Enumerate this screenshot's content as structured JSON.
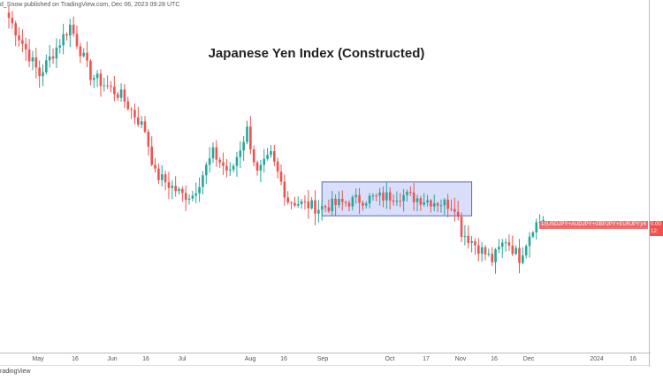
{
  "header": {
    "published": "d_Snow published on TradingView.com, Dec 06, 2023 09:28 UTC"
  },
  "chart_data": {
    "type": "candlestick",
    "title": "Japanese Yen Index (Constructed)",
    "symbol": "1/(USDJPY+AUDJPY+GBPJPY+EURJPY)/4",
    "last_price": "0.00",
    "countdown": "12:",
    "xlabel": "",
    "ylabel": "",
    "ylim": [
      0,
      100
    ],
    "x_ticks": [
      "May",
      "16",
      "Jun",
      "16",
      "Jul",
      "Aug",
      "16",
      "Sep",
      "Oct",
      "17",
      "Nov",
      "16",
      "Dec",
      "2024",
      "16"
    ],
    "close_path_keypoints_bar_index": [
      0,
      9,
      18,
      24,
      33,
      40,
      43,
      51,
      54,
      60,
      65,
      70,
      73,
      77,
      82,
      91,
      102,
      115,
      131,
      133,
      142,
      146,
      150,
      154,
      157
    ],
    "close_path_keypoints_value": [
      100,
      78,
      97,
      78,
      70,
      57,
      40,
      32,
      32,
      48,
      40,
      57,
      40,
      47,
      30,
      27,
      30,
      32,
      28,
      18,
      7,
      15,
      8,
      20,
      23
    ],
    "range_box": {
      "from_bar": 92,
      "to_bar": 136,
      "high": 37,
      "low": 24
    },
    "colors": {
      "up": "#26a69a",
      "down": "#ef5350",
      "box": "#c5cdf7",
      "box_border": "#5b6ab0"
    }
  },
  "footer": {
    "logo": "radingView"
  }
}
